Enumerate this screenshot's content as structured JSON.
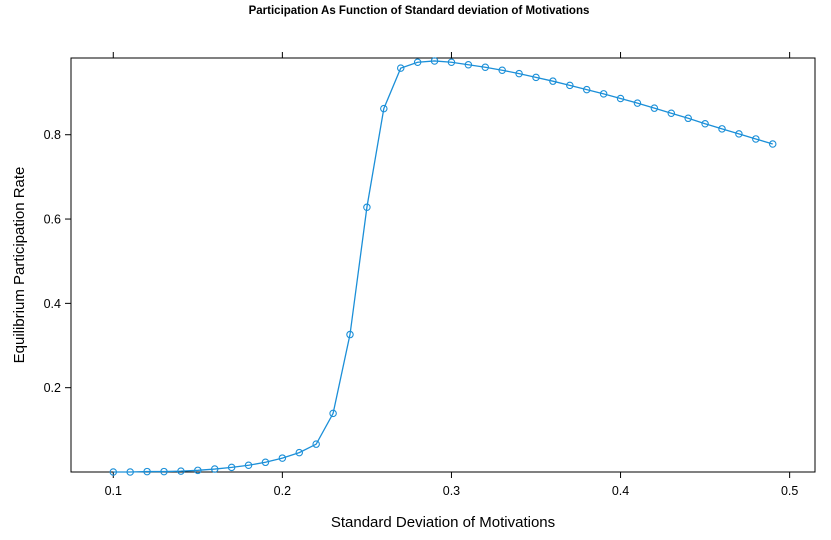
{
  "chart_data": {
    "type": "line",
    "title": "Participation As Function of Standard deviation of Motivations",
    "xlabel": "Standard Deviation of Motivations",
    "ylabel": "Equilibrium Participation Rate",
    "xlim": [
      0.075,
      0.515
    ],
    "ylim": [
      0.0,
      0.982
    ],
    "x_ticks": [
      0.1,
      0.2,
      0.3,
      0.4,
      0.5
    ],
    "x_tick_labels": [
      "0.1",
      "0.2",
      "0.3",
      "0.4",
      "0.5"
    ],
    "y_ticks": [
      0.2,
      0.4,
      0.6,
      0.8
    ],
    "y_tick_labels": [
      "0.2",
      "0.4",
      "0.6",
      "0.8"
    ],
    "grid": false,
    "legend": "none",
    "marker": "open-circle",
    "color": "#1b8fd8",
    "series": [
      {
        "x": [
          0.1,
          0.11,
          0.12,
          0.13,
          0.14,
          0.15,
          0.16,
          0.17,
          0.18,
          0.19,
          0.2,
          0.21,
          0.22,
          0.23,
          0.24,
          0.25,
          0.26,
          0.27,
          0.28,
          0.29,
          0.3,
          0.31,
          0.32,
          0.33,
          0.34,
          0.35,
          0.36,
          0.37,
          0.38,
          0.39,
          0.4,
          0.41,
          0.42,
          0.43,
          0.44,
          0.45,
          0.46,
          0.47,
          0.48,
          0.49
        ],
        "y": [
          0.0,
          0.0,
          0.001,
          0.001,
          0.002,
          0.004,
          0.007,
          0.011,
          0.016,
          0.023,
          0.033,
          0.046,
          0.066,
          0.139,
          0.326,
          0.628,
          0.862,
          0.958,
          0.972,
          0.975,
          0.972,
          0.966,
          0.96,
          0.953,
          0.945,
          0.936,
          0.927,
          0.917,
          0.907,
          0.897,
          0.886,
          0.875,
          0.863,
          0.851,
          0.839,
          0.826,
          0.814,
          0.802,
          0.79,
          0.778
        ]
      }
    ]
  }
}
